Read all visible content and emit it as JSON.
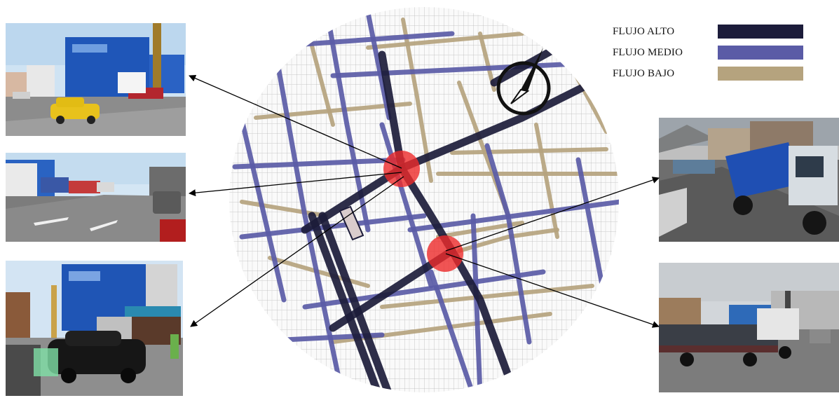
{
  "legend": {
    "items": [
      {
        "label": "FLUJO ALTO",
        "color": "#1c1c3a"
      },
      {
        "label": "FLUJO MEDIO",
        "color": "#5a5ba6"
      },
      {
        "label": "FLUJO BAJO",
        "color": "#b5a37e"
      }
    ]
  },
  "map": {
    "flow_colors": {
      "high": "#1c1c3a",
      "medium": "#5a5ba6",
      "low": "#b5a37e"
    },
    "hotspot_color": "#ee2a2a",
    "compass_icon": "north-arrow-icon"
  },
  "photos": [
    {
      "name": "photo-blue-building-taxi",
      "scene": "street with blue commercial building and yellow taxi"
    },
    {
      "name": "photo-avenue-trucks",
      "scene": "avenue with parked trucks"
    },
    {
      "name": "photo-blue-building-car",
      "scene": "blue building with black car and truck"
    },
    {
      "name": "photo-dump-truck",
      "scene": "blue dump truck on street"
    },
    {
      "name": "photo-flatbed-pipes",
      "scene": "flatbed truck carrying pipes"
    }
  ]
}
